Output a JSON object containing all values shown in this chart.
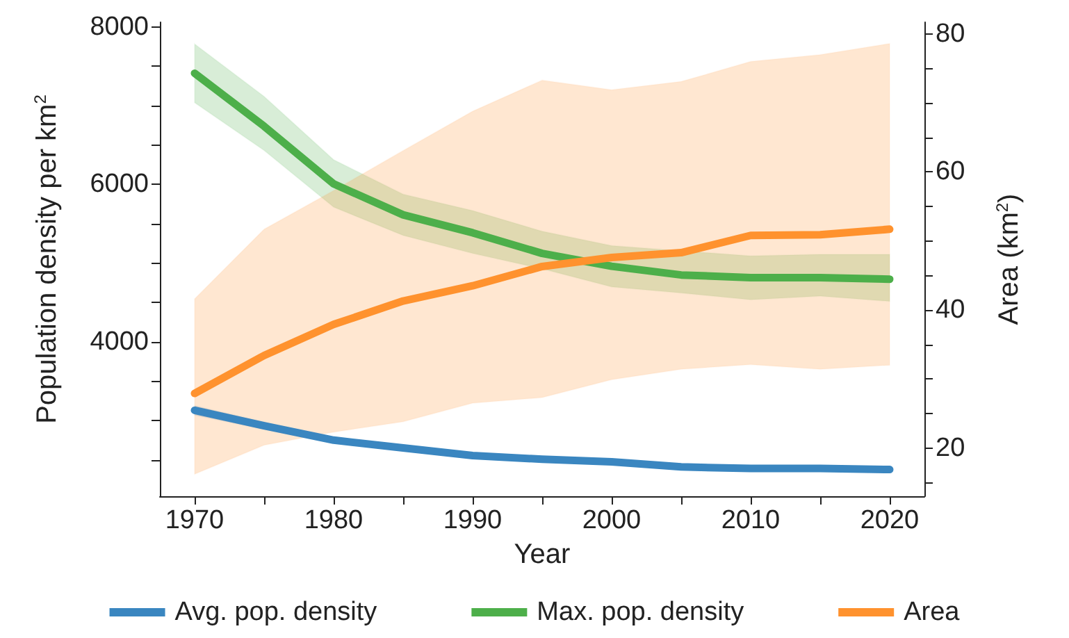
{
  "chart_data": {
    "type": "line",
    "xlabel": "Year",
    "ylabel": "Population density per km$^{2}$",
    "y2label": "Area (km$^{2}$)",
    "x": [
      1970,
      1975,
      1980,
      1985,
      1990,
      1995,
      2000,
      2005,
      2010,
      2015,
      2020
    ],
    "xlim": [
      1967.5,
      2022.5
    ],
    "xticks": [
      1970,
      {
        "value": 1975,
        "label": null
      },
      1980,
      {
        "value": 1985,
        "label": null
      },
      1990,
      {
        "value": 1995,
        "label": null
      },
      2000,
      {
        "value": 2005,
        "label": null
      },
      2010,
      {
        "value": 2015,
        "label": null
      },
      2020
    ],
    "ylim": [
      2040,
      8060
    ],
    "yticks": [
      {
        "value": 2500,
        "label": null
      },
      {
        "value": 3000,
        "label": null
      },
      {
        "value": 3500,
        "label": null
      },
      4000,
      {
        "value": 4500,
        "label": null
      },
      {
        "value": 5000,
        "label": null
      },
      {
        "value": 5500,
        "label": null
      },
      6000,
      {
        "value": 6500,
        "label": null
      },
      {
        "value": 7000,
        "label": null
      },
      {
        "value": 7500,
        "label": null
      },
      8000
    ],
    "y2lim": [
      13,
      81.7
    ],
    "y2ticks": [
      {
        "value": 15,
        "label": null
      },
      20,
      {
        "value": 25,
        "label": null
      },
      {
        "value": 30,
        "label": null
      },
      {
        "value": 35,
        "label": null
      },
      40,
      {
        "value": 45,
        "label": null
      },
      {
        "value": 50,
        "label": null
      },
      {
        "value": 55,
        "label": null
      },
      60,
      {
        "value": 65,
        "label": null
      },
      {
        "value": 70,
        "label": null
      },
      {
        "value": 75,
        "label": null
      },
      80
    ],
    "series": [
      {
        "name": "Avg. pop. density",
        "color": "#3a86c0",
        "values": [
          3131,
          2935,
          2752,
          2654,
          2556,
          2510,
          2477,
          2412,
          2392,
          2392,
          2379
        ],
        "lower": [
          3070,
          2890,
          2725,
          2630,
          2535,
          2490,
          2458,
          2395,
          2375,
          2375,
          2362
        ],
        "upper": [
          3190,
          2980,
          2780,
          2680,
          2578,
          2530,
          2497,
          2430,
          2410,
          2410,
          2397
        ]
      },
      {
        "name": "Max. pop. density",
        "color": "#4daf4a",
        "values": [
          7412,
          6739,
          6007,
          5614,
          5386,
          5124,
          4961,
          4850,
          4817,
          4817,
          4797
        ],
        "lower": [
          7039,
          6431,
          5712,
          5353,
          5124,
          4928,
          4699,
          4621,
          4536,
          4582,
          4516
        ],
        "upper": [
          7784,
          7118,
          6314,
          5876,
          5667,
          5405,
          5222,
          5157,
          5092,
          5111,
          5111
        ]
      },
      {
        "name": "Area",
        "color": "#ff922e",
        "axis": "y2",
        "values": [
          27.9,
          33.4,
          37.9,
          41.3,
          43.5,
          46.3,
          47.6,
          48.3,
          50.8,
          50.9,
          51.7
        ],
        "lower": [
          16.2,
          20.4,
          22.3,
          23.8,
          26.5,
          27.3,
          29.9,
          31.4,
          32.1,
          31.4,
          32.0
        ],
        "upper": [
          41.6,
          51.7,
          57.3,
          63.1,
          68.8,
          73.3,
          71.9,
          73.1,
          76.0,
          77.0,
          78.6
        ]
      }
    ],
    "legend": "bottom",
    "grid": false,
    "marker": "none",
    "line_style": "solid"
  }
}
